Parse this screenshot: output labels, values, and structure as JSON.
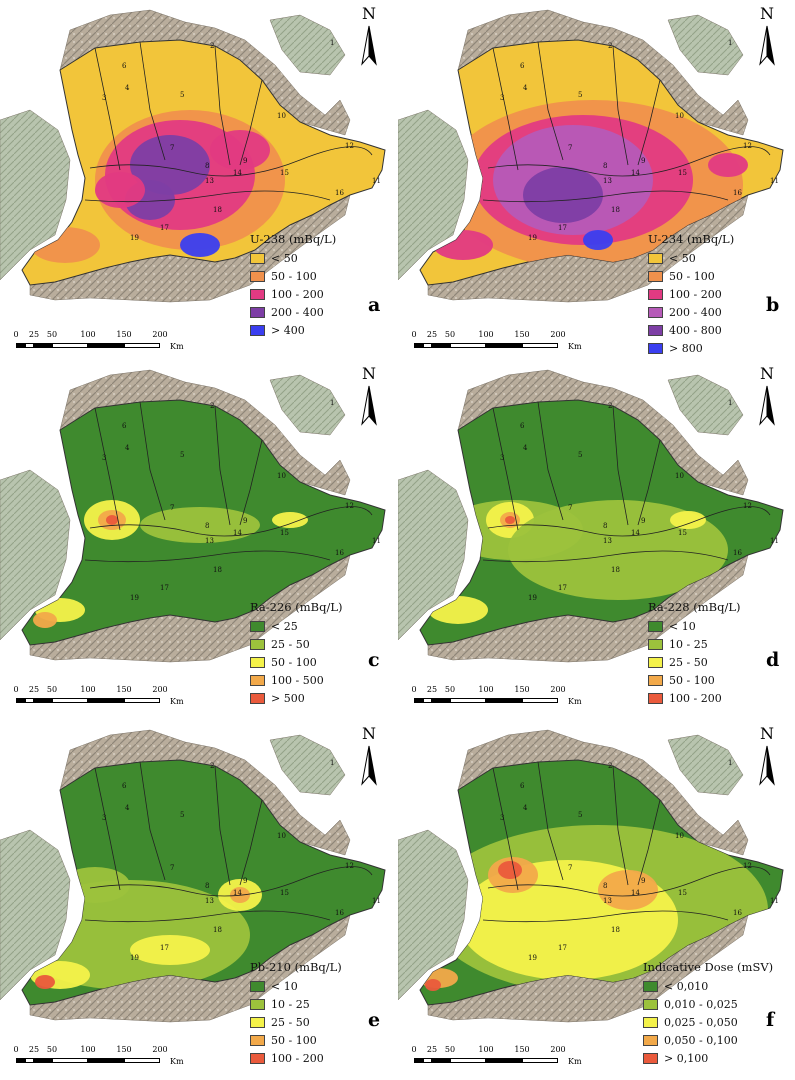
{
  "north_label": "N",
  "scale_ticks": [
    "0",
    "25",
    "50",
    "100",
    "150",
    "200"
  ],
  "scale_unit": "Km",
  "map_region_labels": [
    "1",
    "2",
    "3",
    "4",
    "5",
    "6",
    "7",
    "8",
    "9",
    "10",
    "11",
    "12",
    "13",
    "14",
    "15",
    "16",
    "17",
    "18",
    "19"
  ],
  "panels": [
    {
      "letter": "a",
      "legend_title": "U-238 (mBq/L)",
      "classes": [
        {
          "label": "< 50",
          "color": "#f2c53a"
        },
        {
          "label": "50 - 100",
          "color": "#f0914c"
        },
        {
          "label": "100 - 200",
          "color": "#e23a82"
        },
        {
          "label": "200 - 400",
          "color": "#7d3ea5"
        },
        {
          "label": "> 400",
          "color": "#3a3ef0"
        }
      ]
    },
    {
      "letter": "b",
      "legend_title": "U-234 (mBq/L)",
      "classes": [
        {
          "label": "< 50",
          "color": "#f2c53a"
        },
        {
          "label": "50 - 100",
          "color": "#f0914c"
        },
        {
          "label": "100 - 200",
          "color": "#e23a82"
        },
        {
          "label": "200 - 400",
          "color": "#b65ab8"
        },
        {
          "label": "400 - 800",
          "color": "#7d3ea5"
        },
        {
          "label": "> 800",
          "color": "#3a3ef0"
        }
      ]
    },
    {
      "letter": "c",
      "legend_title": "Ra-226 (mBq/L)",
      "classes": [
        {
          "label": "< 25",
          "color": "#3f8a2e"
        },
        {
          "label": "25 - 50",
          "color": "#9cc23c"
        },
        {
          "label": "50 - 100",
          "color": "#f4f24a"
        },
        {
          "label": "100 - 500",
          "color": "#f2a94a"
        },
        {
          "label": "> 500",
          "color": "#ea5a3c"
        }
      ]
    },
    {
      "letter": "d",
      "legend_title": "Ra-228 (mBq/L)",
      "classes": [
        {
          "label": "< 10",
          "color": "#3f8a2e"
        },
        {
          "label": "10 - 25",
          "color": "#9cc23c"
        },
        {
          "label": "25 - 50",
          "color": "#f4f24a"
        },
        {
          "label": "50 - 100",
          "color": "#f2a94a"
        },
        {
          "label": "100 - 200",
          "color": "#ea5a3c"
        }
      ]
    },
    {
      "letter": "e",
      "legend_title": "Pb-210 (mBq/L)",
      "classes": [
        {
          "label": "< 10",
          "color": "#3f8a2e"
        },
        {
          "label": "10 - 25",
          "color": "#9cc23c"
        },
        {
          "label": "25 - 50",
          "color": "#f4f24a"
        },
        {
          "label": "50 - 100",
          "color": "#f2a94a"
        },
        {
          "label": "100 - 200",
          "color": "#ea5a3c"
        }
      ]
    },
    {
      "letter": "f",
      "legend_title": "Indicative Dose (mSV)",
      "classes": [
        {
          "label": "< 0,010",
          "color": "#3f8a2e"
        },
        {
          "label": "0,010 - 0,025",
          "color": "#9cc23c"
        },
        {
          "label": "0,025 - 0,050",
          "color": "#f4f24a"
        },
        {
          "label": "0,050 - 0,100",
          "color": "#f2a94a"
        },
        {
          "label": "> 0,100",
          "color": "#ea5a3c"
        }
      ]
    }
  ]
}
